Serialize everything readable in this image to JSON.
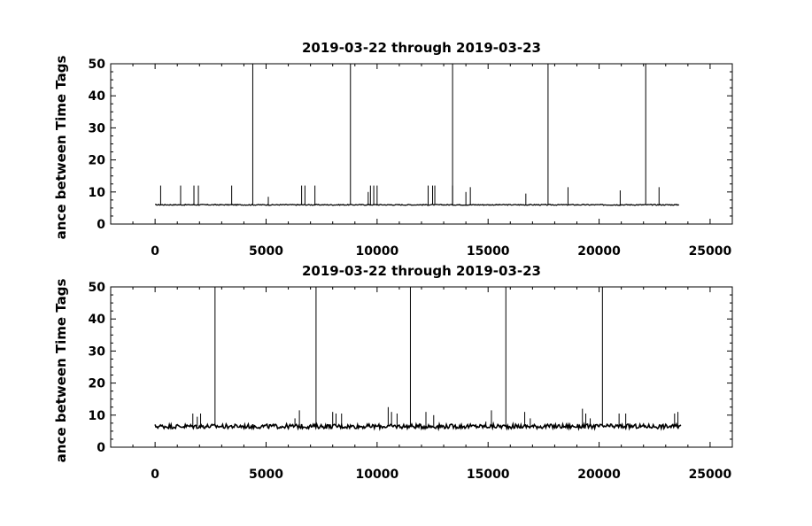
{
  "chart_data": [
    {
      "type": "line",
      "title": "2019-03-22 through 2019-03-23",
      "ylabel": "ance between Time Tags",
      "xlabel": "",
      "xlim": [
        -2000,
        26000
      ],
      "ylim": [
        0,
        50
      ],
      "x_ticks": [
        0,
        5000,
        10000,
        15000,
        20000,
        25000
      ],
      "y_ticks": [
        0,
        10,
        20,
        30,
        40,
        50
      ],
      "grid": false,
      "baseline": 6,
      "x_range": [
        0,
        23600
      ],
      "tall_spikes": [
        4400,
        8800,
        13400,
        17700,
        22100
      ],
      "medium_spikes": [
        [
          250,
          12
        ],
        [
          1150,
          12
        ],
        [
          1750,
          12
        ],
        [
          1950,
          12
        ],
        [
          3450,
          12
        ],
        [
          5100,
          8.5
        ],
        [
          6600,
          12
        ],
        [
          6750,
          12
        ],
        [
          7200,
          12
        ],
        [
          9600,
          10
        ],
        [
          9700,
          12
        ],
        [
          9850,
          12
        ],
        [
          10000,
          12
        ],
        [
          12300,
          12
        ],
        [
          12500,
          12
        ],
        [
          12600,
          12
        ],
        [
          13400,
          12
        ],
        [
          14000,
          10
        ],
        [
          14200,
          11.5
        ],
        [
          16700,
          9.5
        ],
        [
          18600,
          11.5
        ],
        [
          20950,
          10.5
        ],
        [
          22700,
          11.5
        ]
      ]
    },
    {
      "type": "line",
      "title": "2019-03-22 through 2019-03-23",
      "ylabel": "ance between Time Tags",
      "xlabel": "",
      "xlim": [
        -2000,
        26000
      ],
      "ylim": [
        0,
        50
      ],
      "x_ticks": [
        0,
        5000,
        10000,
        15000,
        20000,
        25000
      ],
      "y_ticks": [
        0,
        10,
        20,
        30,
        40,
        50
      ],
      "grid": false,
      "baseline": 6.5,
      "x_range": [
        0,
        23700
      ],
      "tall_spikes": [
        2700,
        7250,
        11500,
        15800,
        20150
      ],
      "medium_spikes": [
        [
          1700,
          10.5
        ],
        [
          1900,
          9.5
        ],
        [
          2050,
          10.5
        ],
        [
          6300,
          9
        ],
        [
          6500,
          11.5
        ],
        [
          8000,
          11
        ],
        [
          8150,
          10.5
        ],
        [
          8400,
          10.5
        ],
        [
          10500,
          12.5
        ],
        [
          10650,
          11
        ],
        [
          10900,
          10.5
        ],
        [
          12200,
          11
        ],
        [
          12550,
          10
        ],
        [
          14900,
          8
        ],
        [
          15150,
          11.5
        ],
        [
          16650,
          11
        ],
        [
          16900,
          9
        ],
        [
          19250,
          12
        ],
        [
          19400,
          10.5
        ],
        [
          19600,
          9
        ],
        [
          20900,
          10.5
        ],
        [
          21200,
          10.5
        ],
        [
          23400,
          10.5
        ],
        [
          23550,
          11
        ]
      ]
    }
  ]
}
